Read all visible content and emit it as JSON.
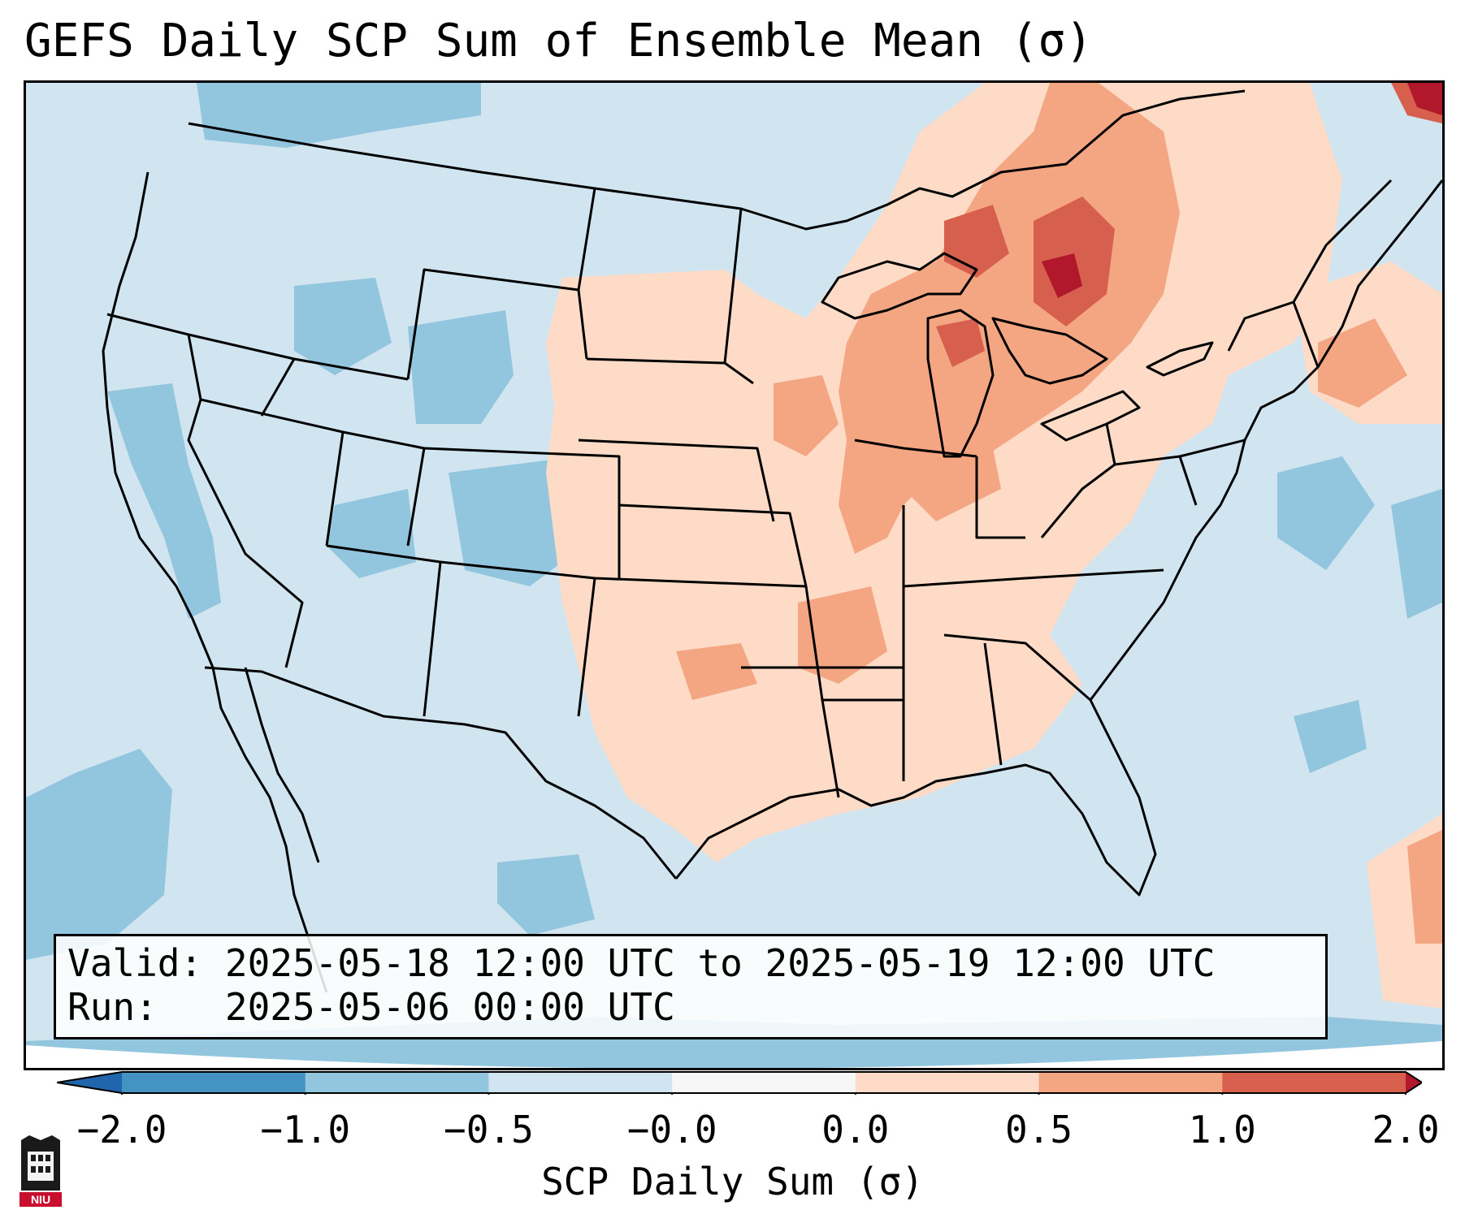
{
  "title": "GEFS Daily SCP Sum of Ensemble Mean (σ)",
  "info": {
    "valid_label": "Valid:",
    "valid_value": "2025-05-18 12:00 UTC to 2025-05-19 12:00 UTC",
    "run_label": "Run:",
    "run_value": "2025-05-06 00:00 UTC"
  },
  "colorbar": {
    "label": "SCP Daily Sum (σ)",
    "ticks": [
      "−2.0",
      "−1.0",
      "−0.5",
      "−0.0",
      "0.0",
      "0.5",
      "1.0",
      "2.0"
    ],
    "colors": [
      "#4393c3",
      "#92c5de",
      "#d1e5f0",
      "#f7f7f7",
      "#fddbc7",
      "#f4a582",
      "#d6604d"
    ],
    "extend_low_color": "#2166ac",
    "extend_high_color": "#b2182b"
  },
  "logo": {
    "text": "NIU",
    "icon": "niu-logo-icon"
  }
}
